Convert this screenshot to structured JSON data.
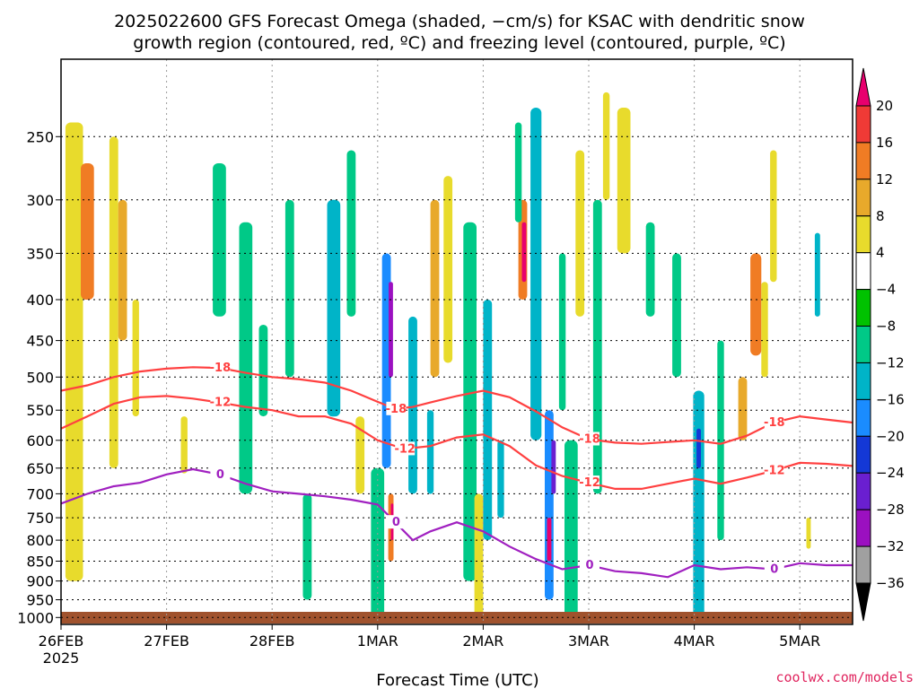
{
  "title": {
    "line1": "2025022600 GFS Forecast Omega (shaded, −cm/s) for KSAC with dendritic snow",
    "line2": "growth region (contoured, red, ºC) and freezing level (contoured, purple, ºC)"
  },
  "credit": "coolwx.com/models",
  "chart_data": {
    "type": "heatmap",
    "xlabel": "Forecast Time (UTC)",
    "x_ticks": [
      {
        "label": "26FEB",
        "sublabel": "2025",
        "hours": 0
      },
      {
        "label": "27FEB",
        "hours": 24
      },
      {
        "label": "28FEB",
        "hours": 48
      },
      {
        "label": "1MAR",
        "hours": 72
      },
      {
        "label": "2MAR",
        "hours": 96
      },
      {
        "label": "3MAR",
        "hours": 120
      },
      {
        "label": "4MAR",
        "hours": 144
      },
      {
        "label": "5MAR",
        "hours": 168
      }
    ],
    "xlim_hours": [
      0,
      180
    ],
    "y_ticks": [
      "250",
      "300",
      "350",
      "400",
      "450",
      "500",
      "550",
      "600",
      "650",
      "700",
      "750",
      "800",
      "850",
      "900",
      "950",
      "1000"
    ],
    "ylim_hPa": [
      200,
      1020
    ],
    "y_scale": "log-pressure",
    "grid": true,
    "colorbar": {
      "labels": [
        "20",
        "16",
        "12",
        "8",
        "4",
        "−4",
        "−8",
        "−12",
        "−16",
        "−20",
        "−24",
        "−28",
        "−32",
        "−36"
      ],
      "colors": [
        "#e8006e",
        "#ef3a36",
        "#f07c24",
        "#e8a92b",
        "#e8db2c",
        "#ffffff",
        "#00c200",
        "#00c987",
        "#00b4c8",
        "#1a8cff",
        "#1438d6",
        "#6a1fd0",
        "#9b10c0",
        "#a0a0a0",
        "#000000"
      ]
    },
    "contours": [
      {
        "label": "-18",
        "color": "#ff4040",
        "points": [
          [
            0,
            520
          ],
          [
            6,
            512
          ],
          [
            12,
            500
          ],
          [
            18,
            492
          ],
          [
            24,
            488
          ],
          [
            30,
            486
          ],
          [
            36,
            487
          ],
          [
            42,
            494
          ],
          [
            48,
            500
          ],
          [
            54,
            503
          ],
          [
            60,
            508
          ],
          [
            66,
            520
          ],
          [
            72,
            537
          ],
          [
            76,
            548
          ],
          [
            80,
            545
          ],
          [
            84,
            538
          ],
          [
            90,
            528
          ],
          [
            96,
            520
          ],
          [
            102,
            530
          ],
          [
            108,
            552
          ],
          [
            114,
            578
          ],
          [
            120,
            598
          ],
          [
            126,
            604
          ],
          [
            132,
            606
          ],
          [
            138,
            603
          ],
          [
            144,
            600
          ],
          [
            150,
            606
          ],
          [
            156,
            592
          ],
          [
            162,
            570
          ],
          [
            168,
            560
          ],
          [
            174,
            565
          ],
          [
            180,
            570
          ]
        ]
      },
      {
        "label": "-12",
        "color": "#ff4040",
        "points": [
          [
            0,
            580
          ],
          [
            6,
            560
          ],
          [
            12,
            540
          ],
          [
            18,
            530
          ],
          [
            24,
            528
          ],
          [
            30,
            532
          ],
          [
            36,
            538
          ],
          [
            42,
            545
          ],
          [
            48,
            550
          ],
          [
            54,
            560
          ],
          [
            60,
            560
          ],
          [
            66,
            572
          ],
          [
            72,
            600
          ],
          [
            78,
            615
          ],
          [
            84,
            610
          ],
          [
            90,
            595
          ],
          [
            96,
            590
          ],
          [
            102,
            610
          ],
          [
            108,
            645
          ],
          [
            114,
            665
          ],
          [
            120,
            678
          ],
          [
            126,
            690
          ],
          [
            132,
            690
          ],
          [
            138,
            680
          ],
          [
            144,
            670
          ],
          [
            150,
            680
          ],
          [
            156,
            668
          ],
          [
            162,
            655
          ],
          [
            168,
            640
          ],
          [
            174,
            642
          ],
          [
            180,
            646
          ]
        ]
      },
      {
        "label": "0",
        "color": "#a020c0",
        "points": [
          [
            0,
            720
          ],
          [
            6,
            700
          ],
          [
            12,
            685
          ],
          [
            18,
            678
          ],
          [
            24,
            662
          ],
          [
            30,
            652
          ],
          [
            36,
            662
          ],
          [
            42,
            680
          ],
          [
            48,
            695
          ],
          [
            54,
            700
          ],
          [
            60,
            705
          ],
          [
            66,
            712
          ],
          [
            72,
            722
          ],
          [
            76,
            760
          ],
          [
            80,
            800
          ],
          [
            84,
            780
          ],
          [
            90,
            760
          ],
          [
            96,
            780
          ],
          [
            102,
            815
          ],
          [
            108,
            845
          ],
          [
            114,
            870
          ],
          [
            120,
            860
          ],
          [
            126,
            875
          ],
          [
            132,
            880
          ],
          [
            138,
            890
          ],
          [
            144,
            860
          ],
          [
            150,
            870
          ],
          [
            156,
            865
          ],
          [
            162,
            870
          ],
          [
            168,
            855
          ],
          [
            174,
            860
          ],
          [
            180,
            860
          ]
        ]
      }
    ],
    "blobs": [
      {
        "x": 3,
        "w": 4,
        "y1": 240,
        "y2": 900,
        "v": 4
      },
      {
        "x": 6,
        "w": 3,
        "y1": 270,
        "y2": 400,
        "v": 12
      },
      {
        "x": 12,
        "w": 2,
        "y1": 250,
        "y2": 650,
        "v": 4
      },
      {
        "x": 14,
        "w": 2,
        "y1": 300,
        "y2": 450,
        "v": 8
      },
      {
        "x": 17,
        "w": 1.5,
        "y1": 400,
        "y2": 560,
        "v": 4
      },
      {
        "x": 28,
        "w": 1.5,
        "y1": 560,
        "y2": 660,
        "v": 4
      },
      {
        "x": 36,
        "w": 3,
        "y1": 270,
        "y2": 420,
        "v": -8
      },
      {
        "x": 42,
        "w": 3,
        "y1": 320,
        "y2": 700,
        "v": -8
      },
      {
        "x": 52,
        "w": 2,
        "y1": 300,
        "y2": 500,
        "v": -8
      },
      {
        "x": 56,
        "w": 2,
        "y1": 700,
        "y2": 950,
        "v": -8
      },
      {
        "x": 62,
        "w": 3,
        "y1": 300,
        "y2": 560,
        "v": -12
      },
      {
        "x": 66,
        "w": 2,
        "y1": 260,
        "y2": 420,
        "v": -8
      },
      {
        "x": 72,
        "w": 3,
        "y1": 650,
        "y2": 1000,
        "v": -8
      },
      {
        "x": 74,
        "w": 2,
        "y1": 350,
        "y2": 650,
        "v": -16
      },
      {
        "x": 75,
        "w": 1,
        "y1": 380,
        "y2": 500,
        "v": -28
      },
      {
        "x": 75,
        "w": 1.2,
        "y1": 700,
        "y2": 850,
        "v": 12
      },
      {
        "x": 75.3,
        "w": 0.6,
        "y1": 720,
        "y2": 800,
        "v": 20
      },
      {
        "x": 80,
        "w": 2,
        "y1": 420,
        "y2": 700,
        "v": -12
      },
      {
        "x": 85,
        "w": 2,
        "y1": 300,
        "y2": 500,
        "v": 8
      },
      {
        "x": 88,
        "w": 2,
        "y1": 280,
        "y2": 480,
        "v": 4
      },
      {
        "x": 93,
        "w": 3,
        "y1": 320,
        "y2": 900,
        "v": -8
      },
      {
        "x": 95,
        "w": 2,
        "y1": 700,
        "y2": 1000,
        "v": 4
      },
      {
        "x": 97,
        "w": 2,
        "y1": 400,
        "y2": 800,
        "v": -12
      },
      {
        "x": 105,
        "w": 2,
        "y1": 300,
        "y2": 400,
        "v": 12
      },
      {
        "x": 105.3,
        "w": 1,
        "y1": 320,
        "y2": 380,
        "v": 20
      },
      {
        "x": 108,
        "w": 2.5,
        "y1": 230,
        "y2": 600,
        "v": -12
      },
      {
        "x": 111,
        "w": 2,
        "y1": 550,
        "y2": 950,
        "v": -16
      },
      {
        "x": 112,
        "w": 1,
        "y1": 600,
        "y2": 700,
        "v": -24
      },
      {
        "x": 111,
        "w": 1,
        "y1": 750,
        "y2": 850,
        "v": 20
      },
      {
        "x": 116,
        "w": 3,
        "y1": 600,
        "y2": 1000,
        "v": -8
      },
      {
        "x": 118,
        "w": 2,
        "y1": 260,
        "y2": 420,
        "v": 4
      },
      {
        "x": 122,
        "w": 2,
        "y1": 300,
        "y2": 700,
        "v": -8
      },
      {
        "x": 128,
        "w": 3,
        "y1": 230,
        "y2": 350,
        "v": 4
      },
      {
        "x": 134,
        "w": 2,
        "y1": 320,
        "y2": 420,
        "v": -8
      },
      {
        "x": 140,
        "w": 2,
        "y1": 350,
        "y2": 500,
        "v": -8
      },
      {
        "x": 145,
        "w": 2.5,
        "y1": 520,
        "y2": 1000,
        "v": -12
      },
      {
        "x": 145,
        "w": 1,
        "y1": 580,
        "y2": 650,
        "v": -20
      },
      {
        "x": 150,
        "w": 1.5,
        "y1": 450,
        "y2": 800,
        "v": -8
      },
      {
        "x": 155,
        "w": 2,
        "y1": 500,
        "y2": 600,
        "v": 8
      },
      {
        "x": 158,
        "w": 2.5,
        "y1": 350,
        "y2": 470,
        "v": 12
      },
      {
        "x": 160,
        "w": 1.5,
        "y1": 380,
        "y2": 500,
        "v": 4
      },
      {
        "x": 162,
        "w": 1.5,
        "y1": 260,
        "y2": 380,
        "v": 4
      },
      {
        "x": 172,
        "w": 1.2,
        "y1": 330,
        "y2": 420,
        "v": -12
      },
      {
        "x": 170,
        "w": 1,
        "y1": 750,
        "y2": 820,
        "v": 4
      },
      {
        "x": 104,
        "w": 1.5,
        "y1": 240,
        "y2": 320,
        "v": -8
      },
      {
        "x": 124,
        "w": 1.5,
        "y1": 220,
        "y2": 300,
        "v": 4
      },
      {
        "x": 46,
        "w": 2,
        "y1": 430,
        "y2": 560,
        "v": -8
      },
      {
        "x": 68,
        "w": 2,
        "y1": 560,
        "y2": 700,
        "v": 4
      },
      {
        "x": 84,
        "w": 1.5,
        "y1": 550,
        "y2": 700,
        "v": -12
      },
      {
        "x": 100,
        "w": 1.5,
        "y1": 600,
        "y2": 750,
        "v": -12
      },
      {
        "x": 114,
        "w": 1.5,
        "y1": 350,
        "y2": 550,
        "v": -8
      }
    ]
  }
}
